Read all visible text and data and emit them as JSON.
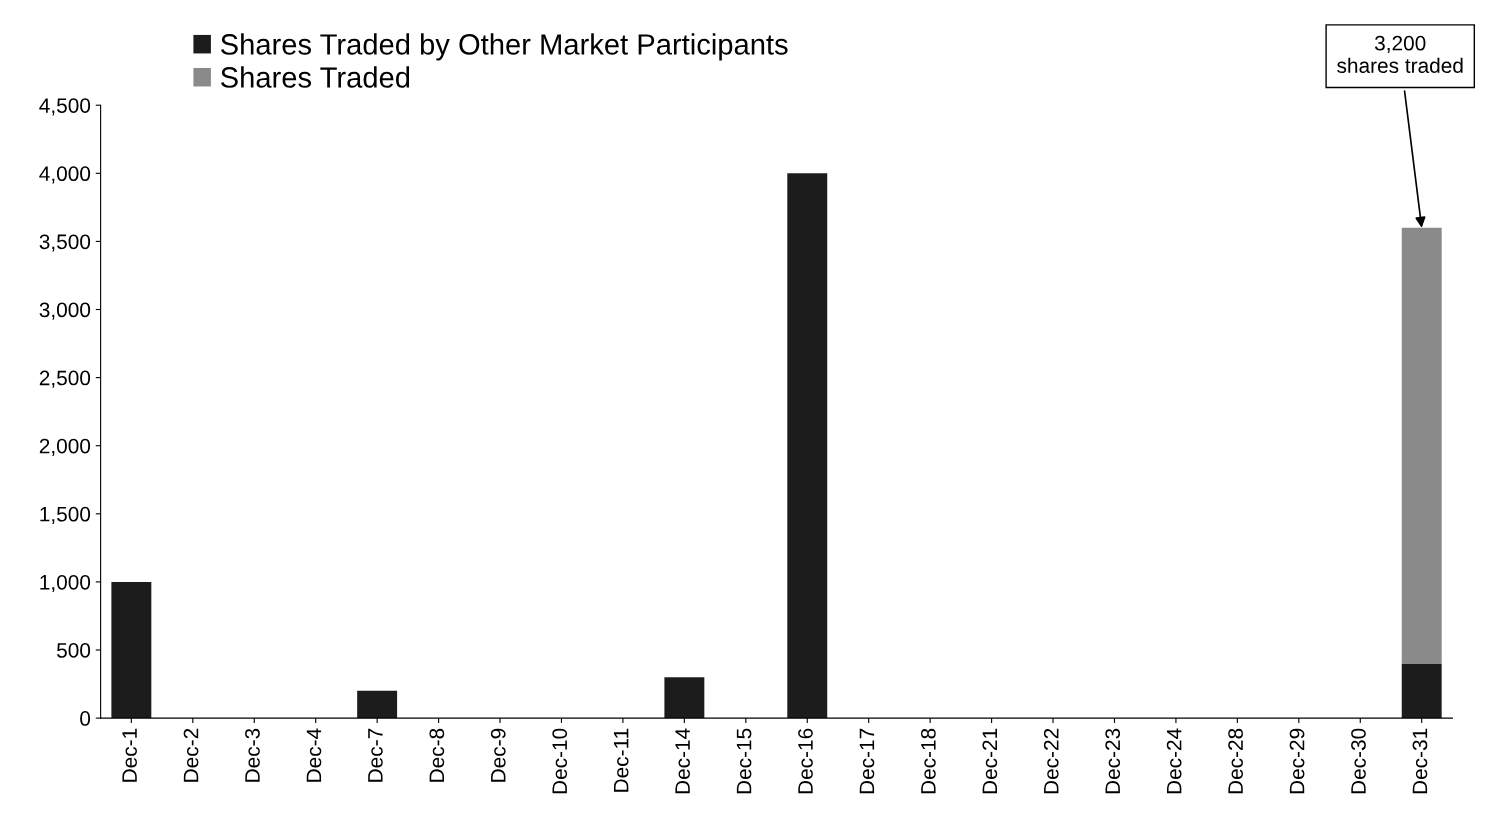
{
  "chart_data": {
    "type": "bar",
    "stacked": true,
    "categories": [
      "Dec-1",
      "Dec-2",
      "Dec-3",
      "Dec-4",
      "Dec-7",
      "Dec-8",
      "Dec-9",
      "Dec-10",
      "Dec-11",
      "Dec-14",
      "Dec-15",
      "Dec-16",
      "Dec-17",
      "Dec-18",
      "Dec-21",
      "Dec-22",
      "Dec-23",
      "Dec-24",
      "Dec-28",
      "Dec-29",
      "Dec-30",
      "Dec-31"
    ],
    "series": [
      {
        "name": "Shares Traded by Other Market Participants",
        "color": "#1c1c1c",
        "values": [
          1000,
          0,
          0,
          0,
          200,
          0,
          0,
          0,
          0,
          300,
          0,
          4000,
          0,
          0,
          0,
          0,
          0,
          0,
          0,
          0,
          0,
          400
        ]
      },
      {
        "name": "Shares Traded",
        "color": "#8a8a8a",
        "values": [
          0,
          0,
          0,
          0,
          0,
          0,
          0,
          0,
          0,
          0,
          0,
          0,
          0,
          0,
          0,
          0,
          0,
          0,
          0,
          0,
          0,
          3200
        ]
      }
    ],
    "ylim": [
      0,
      4500
    ],
    "yticks": [
      {
        "value": 0,
        "label": "0"
      },
      {
        "value": 500,
        "label": "500"
      },
      {
        "value": 1000,
        "label": "1,000"
      },
      {
        "value": 1500,
        "label": "1,500"
      },
      {
        "value": 2000,
        "label": "2,000"
      },
      {
        "value": 2500,
        "label": "2,500"
      },
      {
        "value": 3000,
        "label": "3,000"
      },
      {
        "value": 3500,
        "label": "3,500"
      },
      {
        "value": 4000,
        "label": "4,000"
      },
      {
        "value": 4500,
        "label": "4,500"
      }
    ],
    "annotations": [
      {
        "text": "3,200\nshares traded",
        "x": "Dec-31",
        "y": 3600
      }
    ],
    "legend": "top left",
    "grid": false
  }
}
